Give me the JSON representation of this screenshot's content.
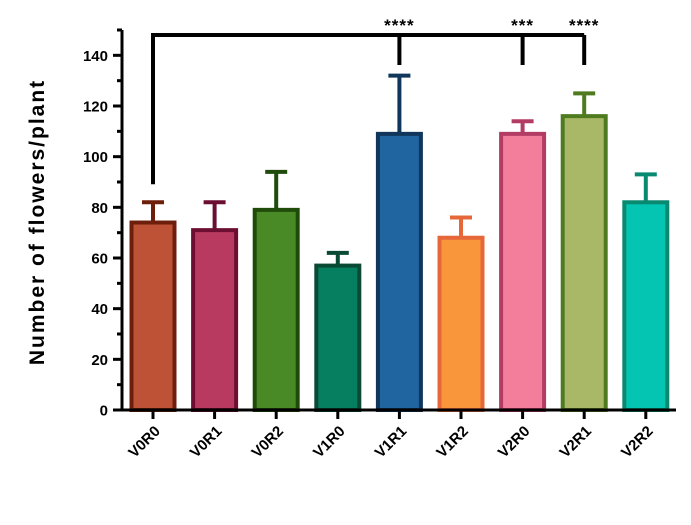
{
  "chart_data": {
    "type": "bar",
    "title": "",
    "xlabel": "",
    "ylabel": "Number of flowers/plant",
    "ylim": [
      0,
      150
    ],
    "yticks": [
      0,
      20,
      40,
      60,
      80,
      100,
      120,
      140
    ],
    "categories": [
      "V0R0",
      "V0R1",
      "V0R2",
      "V1R0",
      "V1R1",
      "V1R2",
      "V2R0",
      "V2R1",
      "V2R2"
    ],
    "values": [
      74,
      71,
      79,
      57,
      109,
      68,
      109,
      116,
      82
    ],
    "errors": [
      8,
      11,
      15,
      5,
      23,
      8,
      5,
      9,
      11
    ],
    "fill_colors": [
      "#bd5236",
      "#b83a60",
      "#4a8a26",
      "#067e60",
      "#2064a0",
      "#f9953a",
      "#f37e9c",
      "#a9b866",
      "#04c4b2"
    ],
    "edge_colors": [
      "#6e1f0c",
      "#6c0e32",
      "#1f4c0b",
      "#0a4a34",
      "#10365b",
      "#e6683a",
      "#b23c63",
      "#4e7a20",
      "#098a70"
    ],
    "significance": [
      {
        "label": "****",
        "to": "V1R1"
      },
      {
        "label": "***",
        "to": "V2R0"
      },
      {
        "label": "****",
        "to": "V2R1"
      }
    ],
    "comparison_reference": "V0R0",
    "grid": false,
    "legend": "none"
  }
}
